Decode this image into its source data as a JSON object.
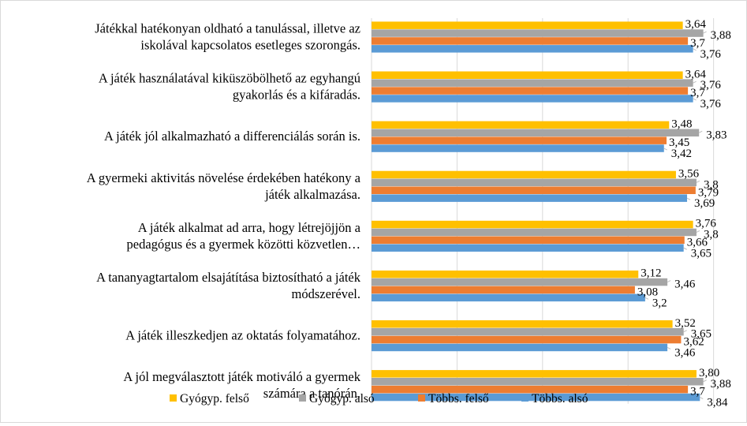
{
  "chart_data": {
    "type": "bar",
    "orientation": "horizontal",
    "categories": [
      [
        "Játékkal hatékonyan oldható a tanulással, illetve az",
        "iskolával kapcsolatos esetleges szorongás."
      ],
      [
        "A játék használatával kiküszöbölhető az egyhangú",
        "gyakorlás és a kifáradás."
      ],
      [
        "A játék jól alkalmazható a differenciálás során is."
      ],
      [
        "A gyermeki aktivitás növelése érdekében hatékony a",
        "játék alkalmazása."
      ],
      [
        "A játék alkalmat ad arra, hogy létrejöjjön a",
        "pedagógus és a gyermek közötti közvetlen…"
      ],
      [
        "A tananyagtartalom elsajátítása biztosítható a játék",
        "módszerével."
      ],
      [
        "A játék illeszkedjen az oktatás folyamatához."
      ],
      [
        "A jól megválasztott játék motiváló a gyermek",
        "számára a tanórán."
      ]
    ],
    "series": [
      {
        "name": "Gyógyp. felső",
        "color": "#ffc000",
        "values": [
          3.64,
          3.64,
          3.48,
          3.56,
          3.76,
          3.12,
          3.52,
          3.8
        ],
        "labels": [
          "3,64",
          "3,64",
          "3,48",
          "3,56",
          "3,76",
          "3,12",
          "3,52",
          "3,80"
        ]
      },
      {
        "name": "Gyógyp. alsó",
        "color": "#a5a5a5",
        "values": [
          3.88,
          3.76,
          3.83,
          3.8,
          3.8,
          3.46,
          3.65,
          3.88
        ],
        "labels": [
          "3,88",
          "3,76",
          "3,83",
          "3,8",
          "3,8",
          "3,46",
          "3,65",
          "3,88"
        ]
      },
      {
        "name": "Többs. felső",
        "color": "#ed7d31",
        "values": [
          3.7,
          3.7,
          3.45,
          3.79,
          3.66,
          3.08,
          3.62,
          3.7
        ],
        "labels": [
          "3,7",
          "3,7",
          "3,45",
          "3,79",
          "3,66",
          "3,08",
          "3,62",
          "3,7"
        ]
      },
      {
        "name": "Többs. alsó",
        "color": "#5b9bd5",
        "values": [
          3.76,
          3.76,
          3.42,
          3.69,
          3.65,
          3.2,
          3.46,
          3.84
        ],
        "labels": [
          "3,76",
          "3,76",
          "3,42",
          "3,69",
          "3,65",
          "3,2",
          "3,46",
          "3,84"
        ]
      }
    ],
    "xlim": [
      0,
      4.4
    ],
    "grid": true,
    "legend_position": "bottom"
  }
}
